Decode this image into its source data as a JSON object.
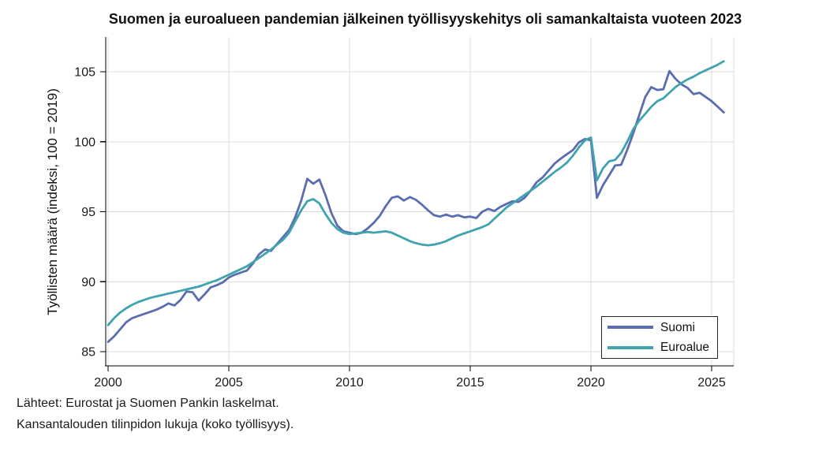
{
  "footer": {
    "line1": "Lähteet: Eurostat ja Suomen Pankin laskelmat.",
    "line2": "Kansantalouden tilinpidon lukuja (koko työllisyys)."
  },
  "chart_data": {
    "type": "line",
    "title": "Suomen ja euroalueen pandemian jälkeinen työllisyyskehitys oli samankaltaista vuoteen 2023",
    "xlabel": "",
    "ylabel": "Työllisten määrä (indeksi, 100 = 2019)",
    "x_start": 2000.0,
    "x_step": 0.25,
    "x_frequency": "quarterly",
    "xlim": [
      2000,
      2026
    ],
    "ylim": [
      84,
      107.5
    ],
    "x_ticks": [
      2000,
      2005,
      2010,
      2015,
      2020,
      2025
    ],
    "x_tick_labels": [
      "2000",
      "2005",
      "2010",
      "2015",
      "2020",
      "2025"
    ],
    "y_ticks": [
      85,
      90,
      95,
      100,
      105
    ],
    "y_tick_labels": [
      "85",
      "90",
      "95",
      "100",
      "105"
    ],
    "grid": true,
    "grid_color": "#dcdcdc",
    "axis_color": "#000000",
    "text_color": "#1a1a1a",
    "legend_position": "bottom-right",
    "series": [
      {
        "name": "Suomi",
        "color": "#5a6db0",
        "line_width": 2.8,
        "values": [
          85.7,
          86.1,
          86.6,
          87.1,
          87.4,
          87.55,
          87.7,
          87.85,
          88.0,
          88.2,
          88.45,
          88.3,
          88.7,
          89.3,
          89.25,
          88.65,
          89.1,
          89.6,
          89.75,
          89.95,
          90.3,
          90.5,
          90.65,
          90.8,
          91.3,
          91.95,
          92.3,
          92.2,
          92.7,
          93.2,
          93.7,
          94.6,
          95.8,
          97.35,
          97.0,
          97.3,
          96.2,
          94.9,
          94.0,
          93.6,
          93.5,
          93.4,
          93.5,
          93.8,
          94.2,
          94.7,
          95.4,
          96.0,
          96.1,
          95.8,
          96.05,
          95.85,
          95.5,
          95.1,
          94.75,
          94.65,
          94.8,
          94.65,
          94.75,
          94.6,
          94.65,
          94.55,
          95.0,
          95.2,
          95.05,
          95.35,
          95.55,
          95.75,
          95.7,
          96.0,
          96.5,
          97.1,
          97.45,
          97.95,
          98.45,
          98.8,
          99.1,
          99.4,
          99.95,
          100.2,
          100.1,
          96.0,
          96.9,
          97.6,
          98.3,
          98.35,
          99.4,
          100.6,
          101.9,
          103.2,
          103.9,
          103.7,
          103.75,
          105.05,
          104.5,
          104.1,
          103.85,
          103.4,
          103.5,
          103.2,
          102.9,
          102.5,
          102.1
        ]
      },
      {
        "name": "Euroalue",
        "color": "#40a3ad",
        "line_width": 2.8,
        "values": [
          86.9,
          87.4,
          87.8,
          88.1,
          88.35,
          88.55,
          88.7,
          88.85,
          88.95,
          89.05,
          89.15,
          89.25,
          89.35,
          89.45,
          89.55,
          89.65,
          89.8,
          89.95,
          90.1,
          90.3,
          90.5,
          90.7,
          90.9,
          91.1,
          91.4,
          91.7,
          92.0,
          92.3,
          92.65,
          93.0,
          93.5,
          94.3,
          95.1,
          95.75,
          95.9,
          95.6,
          94.85,
          94.2,
          93.75,
          93.5,
          93.4,
          93.45,
          93.5,
          93.55,
          93.5,
          93.55,
          93.6,
          93.5,
          93.3,
          93.1,
          92.9,
          92.75,
          92.65,
          92.6,
          92.65,
          92.75,
          92.9,
          93.1,
          93.3,
          93.45,
          93.6,
          93.75,
          93.9,
          94.1,
          94.5,
          94.9,
          95.3,
          95.6,
          95.9,
          96.2,
          96.5,
          96.8,
          97.15,
          97.5,
          97.85,
          98.15,
          98.5,
          99.0,
          99.6,
          100.1,
          100.3,
          97.25,
          98.1,
          98.6,
          98.7,
          99.2,
          100.0,
          100.9,
          101.5,
          102.0,
          102.5,
          102.9,
          103.1,
          103.5,
          103.9,
          104.2,
          104.45,
          104.65,
          104.9,
          105.1,
          105.3,
          105.5,
          105.75
        ]
      }
    ]
  }
}
